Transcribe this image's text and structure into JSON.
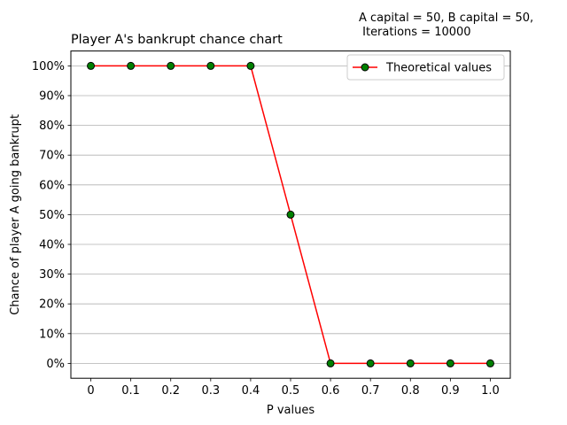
{
  "chart_data": {
    "type": "line",
    "title": "Player A's bankrupt chance chart",
    "annotation_lines": [
      "A capital = 50, B capital = 50,",
      " Iterations = 10000"
    ],
    "xlabel": "P values",
    "ylabel": "Chance of player A going bankrupt",
    "x": [
      0,
      0.1,
      0.2,
      0.3,
      0.4,
      0.5,
      0.6,
      0.7,
      0.8,
      0.9,
      1.0
    ],
    "x_tick_labels": [
      "0",
      "0.1",
      "0.2",
      "0.3",
      "0.4",
      "0.5",
      "0.6",
      "0.7",
      "0.8",
      "0.9",
      "1.0"
    ],
    "y_ticks": [
      0,
      10,
      20,
      30,
      40,
      50,
      60,
      70,
      80,
      90,
      100
    ],
    "y_tick_labels": [
      "0%",
      "10%",
      "20%",
      "30%",
      "40%",
      "50%",
      "60%",
      "70%",
      "80%",
      "90%",
      "100%"
    ],
    "xlim": [
      -0.05,
      1.05
    ],
    "ylim": [
      -5,
      105
    ],
    "grid": "horizontal",
    "legend_position": "top-right",
    "series": [
      {
        "name": "Theoretical values",
        "values": [
          100,
          100,
          100,
          100,
          100,
          50,
          0,
          0,
          0,
          0,
          0
        ],
        "line_color": "#ff0000",
        "marker_color": "#008000",
        "marker_edge_color": "#000000"
      }
    ]
  }
}
